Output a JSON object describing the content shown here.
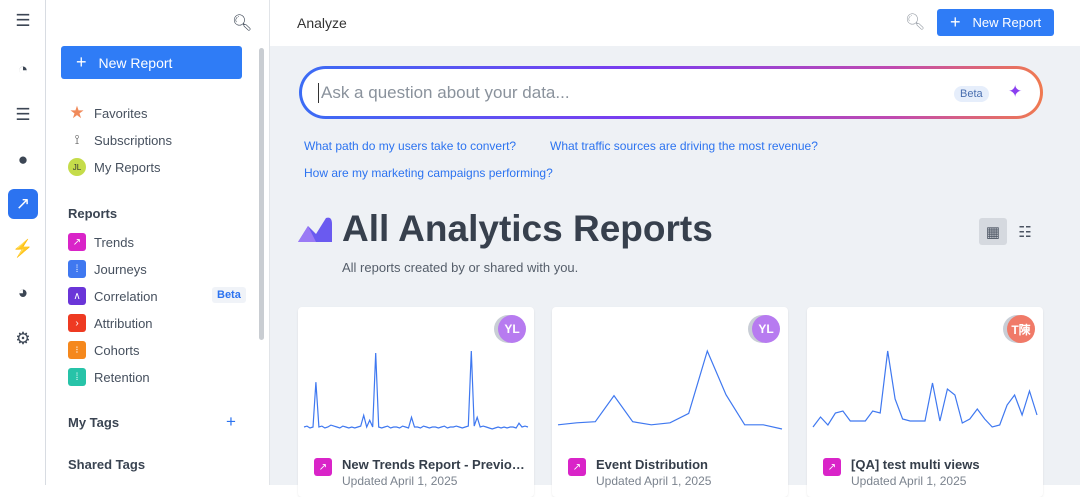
{
  "rail": {
    "items": [
      "menu-icon",
      "dashboard-icon",
      "explore-icon",
      "users-icon",
      "analyze-icon",
      "events-icon",
      "pie-icon",
      "gear-icon"
    ],
    "active": 4
  },
  "sidebar": {
    "new_report": "New Report",
    "top_items": [
      {
        "label": "Favorites"
      },
      {
        "label": "Subscriptions"
      },
      {
        "label": "My Reports",
        "avatar": "JL"
      }
    ],
    "reports_heading": "Reports",
    "reports": [
      {
        "label": "Trends",
        "color": "#d924c8"
      },
      {
        "label": "Journeys",
        "color": "#3f78f0"
      },
      {
        "label": "Correlation",
        "color": "#6a35d8",
        "badge": "Beta"
      },
      {
        "label": "Attribution",
        "color": "#ee3a22"
      },
      {
        "label": "Cohorts",
        "color": "#f5881d"
      },
      {
        "label": "Retention",
        "color": "#27c3a8"
      }
    ],
    "my_tags": "My Tags",
    "my_tags_add": "+",
    "shared_tags": "Shared Tags"
  },
  "header": {
    "title": "Analyze",
    "new_report": "New Report"
  },
  "ask": {
    "placeholder": "Ask a question about your data...",
    "badge": "Beta"
  },
  "suggestions": [
    "What path do my users take to convert?",
    "What traffic sources are driving the most revenue?",
    "How are my marketing campaigns performing?"
  ],
  "page": {
    "title": "All Analytics Reports",
    "subtitle": "All reports created by or shared with you."
  },
  "cards": [
    {
      "name": "New Trends Report - Previous...",
      "updated": "Updated April 1, 2025",
      "avatar": "YL",
      "avatar_color": "#b77bf0",
      "sparkline": [
        2,
        3,
        1,
        2,
        48,
        2,
        3,
        1,
        2,
        4,
        3,
        2,
        1,
        3,
        2,
        1,
        2,
        1,
        2,
        3,
        14,
        2,
        9,
        2,
        78,
        2,
        1,
        2,
        3,
        1,
        2,
        2,
        1,
        3,
        2,
        1,
        12,
        2,
        2,
        1,
        3,
        2,
        1,
        2,
        2,
        1,
        2,
        3,
        1,
        2,
        2,
        3,
        2,
        1,
        2,
        3,
        80,
        3,
        12,
        2,
        3,
        2,
        1,
        0,
        1,
        2,
        1,
        2,
        1,
        2,
        2,
        1,
        6,
        2,
        3,
        2
      ]
    },
    {
      "name": "Event Distribution",
      "updated": "Updated April 1, 2025",
      "avatar": "YL",
      "avatar_color": "#b77bf0",
      "sparkline": [
        4,
        6,
        7,
        32,
        7,
        4,
        6,
        15,
        75,
        33,
        4,
        4,
        0
      ]
    },
    {
      "name": "[QA] test multi views",
      "updated": "Updated April 1, 2025",
      "avatar": "T陳",
      "avatar_color": "#f07a68",
      "sparkline": [
        2,
        12,
        4,
        16,
        18,
        8,
        8,
        8,
        18,
        16,
        78,
        30,
        10,
        8,
        8,
        8,
        46,
        8,
        40,
        34,
        6,
        10,
        20,
        10,
        2,
        4,
        24,
        34,
        14,
        38,
        14
      ]
    }
  ]
}
